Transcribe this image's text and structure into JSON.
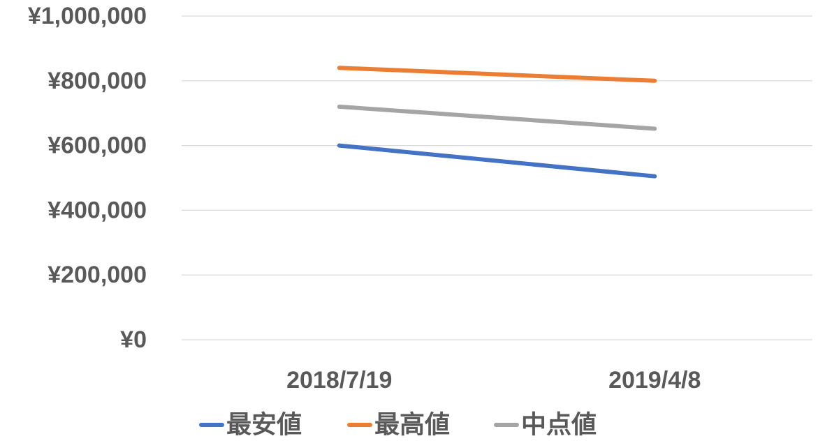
{
  "chart_data": {
    "type": "line",
    "categories": [
      "2018/7/19",
      "2019/4/8"
    ],
    "series": [
      {
        "name": "最安値",
        "values": [
          600000,
          505000
        ],
        "color": "#4472C4"
      },
      {
        "name": "最高値",
        "values": [
          840000,
          800000
        ],
        "color": "#ED7D31"
      },
      {
        "name": "中点値",
        "values": [
          720000,
          652000
        ],
        "color": "#A5A5A5"
      }
    ],
    "ylim": [
      0,
      1000000
    ],
    "y_ticks": [
      0,
      200000,
      400000,
      600000,
      800000,
      1000000
    ],
    "y_tick_labels": [
      "¥0",
      "¥200,000",
      "¥400,000",
      "¥600,000",
      "¥800,000",
      "¥1,000,000"
    ],
    "grid": true,
    "legend": "bottom"
  }
}
